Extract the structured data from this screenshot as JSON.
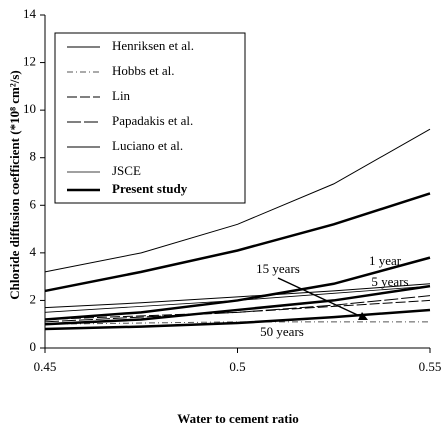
{
  "chart_data": {
    "type": "line",
    "y_label": "Chloride diffusion coefficient (*10⁸ cm²/s)",
    "x_label": "Water to cement ratio",
    "x": [
      0.45,
      0.475,
      0.5,
      0.525,
      0.55
    ],
    "xlim": [
      0.45,
      0.55
    ],
    "xticks": [
      0.45,
      0.5,
      0.55
    ],
    "ylim": [
      0,
      14
    ],
    "yticks": [
      0,
      2,
      4,
      6,
      8,
      10,
      12,
      14
    ],
    "series": [
      {
        "name": "Henriksen et al.",
        "color": "#000000",
        "width": 1,
        "dash": "none",
        "values": [
          3.2,
          4.0,
          5.2,
          6.9,
          9.2
        ]
      },
      {
        "name": "Hobbs et al.",
        "color": "#555555",
        "width": 1,
        "dash": "6,3,1,3",
        "values": [
          1.0,
          1.05,
          1.1,
          1.1,
          1.1
        ]
      },
      {
        "name": "Lin",
        "color": "#000000",
        "width": 1,
        "dash": "10,3",
        "values": [
          1.2,
          1.35,
          1.5,
          1.75,
          2.0
        ]
      },
      {
        "name": "Papadakis et al.",
        "color": "#000000",
        "width": 1,
        "dash": "14,3",
        "values": [
          1.1,
          1.3,
          1.5,
          1.8,
          2.2
        ]
      },
      {
        "name": "Luciano et al.",
        "color": "#000000",
        "width": 1,
        "dash": "none",
        "values": [
          1.7,
          1.9,
          2.15,
          2.4,
          2.7
        ]
      },
      {
        "name": "JSCE",
        "color": "#000000",
        "width": 0.8,
        "dash": "none",
        "values": [
          1.5,
          1.75,
          2.0,
          2.3,
          2.6
        ]
      },
      {
        "name": "Present study",
        "color": "#000000",
        "width": 2.5,
        "dash": "none",
        "curves": [
          {
            "label": "1 year",
            "values": [
              2.4,
              3.2,
              4.1,
              5.2,
              6.5
            ]
          },
          {
            "label": "5 years",
            "values": [
              1.2,
              1.5,
              2.0,
              2.7,
              3.8
            ]
          },
          {
            "label": "15 years",
            "values": [
              1.0,
              1.2,
              1.6,
              2.0,
              2.6
            ]
          },
          {
            "label": "50 years",
            "values": [
              0.8,
              0.9,
              1.05,
              1.3,
              1.6
            ]
          }
        ]
      }
    ]
  }
}
